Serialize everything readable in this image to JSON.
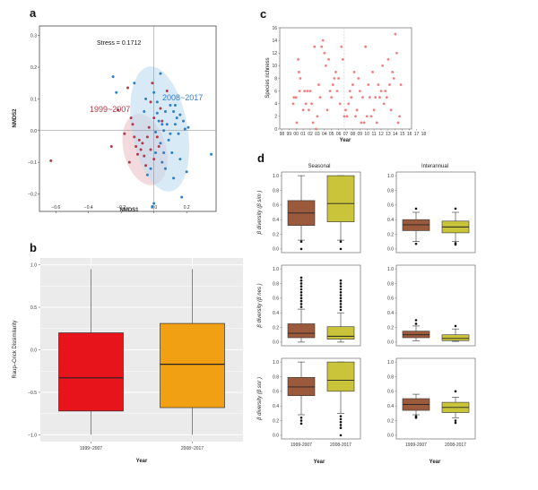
{
  "panels": {
    "a": "a",
    "b": "b",
    "c": "c",
    "d": "d"
  },
  "chart_data": [
    {
      "panel": "a",
      "type": "scatter",
      "xlabel": "NMDS1",
      "ylabel": "NMDS2",
      "xlim": [
        -0.7,
        0.38
      ],
      "ylim": [
        -0.255,
        0.33
      ],
      "xticks": [
        -0.6,
        -0.4,
        -0.2,
        0.0,
        0.2
      ],
      "xtick_labels": [
        "−0.6",
        "−0.4",
        "−0.2",
        "0.0",
        "0.2"
      ],
      "yticks": [
        -0.2,
        -0.1,
        0.0,
        0.1,
        0.2,
        0.3
      ],
      "ytick_labels": [
        "−0.2",
        "−0.1",
        "0.0",
        "0.1",
        "0.2",
        "0.3"
      ],
      "annotation": "Stress = 0.1712",
      "ellipses": [
        {
          "cx": -0.055,
          "cy": -0.06,
          "rx": 0.13,
          "ry": 0.115,
          "angle": -15,
          "color": "#e9c2c6"
        },
        {
          "cx": 0.035,
          "cy": 0.005,
          "rx": 0.17,
          "ry": 0.2,
          "angle": -10,
          "color": "#bfdcf1"
        }
      ],
      "series": [
        {
          "name": "1999~2007",
          "color": "#b03a48",
          "points": [
            [
              -0.63,
              -0.095
            ],
            [
              -0.26,
              -0.05
            ],
            [
              -0.22,
              0.065
            ],
            [
              -0.16,
              0.135
            ],
            [
              -0.14,
              0.04
            ],
            [
              -0.13,
              0.02
            ],
            [
              -0.12,
              -0.02
            ],
            [
              -0.11,
              -0.05
            ],
            [
              -0.1,
              -0.075
            ],
            [
              -0.09,
              -0.03
            ],
            [
              -0.08,
              -0.06
            ],
            [
              -0.07,
              -0.04
            ],
            [
              -0.06,
              -0.08
            ],
            [
              -0.05,
              -0.11
            ],
            [
              -0.04,
              -0.02
            ],
            [
              -0.03,
              0.01
            ],
            [
              -0.02,
              -0.06
            ],
            [
              -0.01,
              0.15
            ],
            [
              0.0,
              0.04
            ],
            [
              0.0,
              -0.09
            ],
            [
              0.02,
              -0.02
            ],
            [
              0.03,
              -0.05
            ],
            [
              0.05,
              0.03
            ],
            [
              0.08,
              0.125
            ],
            [
              -0.15,
              -0.1
            ],
            [
              -0.18,
              -0.01
            ],
            [
              0.04,
              0.07
            ],
            [
              -0.02,
              0.09
            ]
          ]
        },
        {
          "name": "2008~2017",
          "color": "#2f7fc4",
          "points": [
            [
              -0.25,
              0.17
            ],
            [
              -0.23,
              0.12
            ],
            [
              -0.12,
              0.15
            ],
            [
              -0.06,
              0.06
            ],
            [
              -0.04,
              -0.14
            ],
            [
              -0.02,
              -0.12
            ],
            [
              -0.01,
              -0.24
            ],
            [
              0.0,
              -0.23
            ],
            [
              0.01,
              -0.005
            ],
            [
              0.01,
              -0.07
            ],
            [
              0.02,
              0.09
            ],
            [
              0.02,
              0.055
            ],
            [
              0.03,
              0.03
            ],
            [
              0.04,
              -0.04
            ],
            [
              0.04,
              0.18
            ],
            [
              0.05,
              0.02
            ],
            [
              0.05,
              -0.1
            ],
            [
              0.06,
              0.0
            ],
            [
              0.07,
              -0.12
            ],
            [
              0.07,
              0.06
            ],
            [
              0.08,
              0.02
            ],
            [
              0.09,
              -0.03
            ],
            [
              0.1,
              -0.01
            ],
            [
              0.1,
              0.08
            ],
            [
              0.11,
              -0.07
            ],
            [
              0.12,
              0.06
            ],
            [
              0.12,
              -0.15
            ],
            [
              0.13,
              0.02
            ],
            [
              0.14,
              0.04
            ],
            [
              0.15,
              -0.01
            ],
            [
              0.16,
              -0.09
            ],
            [
              0.16,
              0.05
            ],
            [
              0.17,
              -0.21
            ],
            [
              0.18,
              0.03
            ],
            [
              0.19,
              0.005
            ],
            [
              0.2,
              -0.13
            ],
            [
              0.21,
              0.01
            ],
            [
              0.35,
              -0.075
            ],
            [
              -0.05,
              0.1
            ],
            [
              0.0,
              0.12
            ],
            [
              0.06,
              -0.07
            ],
            [
              0.13,
              0.08
            ]
          ]
        }
      ]
    },
    {
      "panel": "b",
      "type": "boxplot",
      "categories": [
        "1999~2007",
        "2008~2017"
      ],
      "xlabel": "Year",
      "ylabel": "Raup–Crick Dissimilarity",
      "ylim": [
        -1.08,
        1.08
      ],
      "yticks": [
        -1.0,
        -0.5,
        0.0,
        0.5,
        1.0
      ],
      "ytick_labels": [
        "−1.0",
        "−0.5",
        "0.0",
        "0.5",
        "1.0"
      ],
      "boxes": [
        {
          "min": -1.0,
          "q1": -0.72,
          "median": -0.33,
          "q3": 0.2,
          "max": 0.95,
          "color": "#e8141b"
        },
        {
          "min": -1.0,
          "q1": -0.68,
          "median": -0.17,
          "q3": 0.31,
          "max": 0.95,
          "color": "#f2a013"
        }
      ]
    },
    {
      "panel": "c",
      "type": "scatter",
      "xlabel": "Year",
      "ylabel": "Species richness",
      "xlim": [
        -0.3,
        18.3
      ],
      "ylim": [
        0,
        16
      ],
      "xtick_labels": [
        "98",
        "99",
        "00",
        "01",
        "02",
        "03",
        "04",
        "05",
        "06",
        "07",
        "08",
        "09",
        "10",
        "11",
        "12",
        "13",
        "14",
        "15",
        "16",
        "17",
        "18"
      ],
      "yticks": [
        0,
        2,
        4,
        6,
        8,
        10,
        12,
        14,
        16
      ],
      "ytick_labels": [
        "0",
        "2",
        "4",
        "6",
        "8",
        "10",
        "12",
        "14",
        "16"
      ],
      "vline_x": 8.8,
      "color": "#f08080",
      "points": [
        [
          1.6,
          4
        ],
        [
          1.7,
          5
        ],
        [
          2.0,
          5
        ],
        [
          2.1,
          1
        ],
        [
          2.3,
          11
        ],
        [
          2.4,
          9
        ],
        [
          2.5,
          6
        ],
        [
          2.6,
          8
        ],
        [
          3.0,
          3
        ],
        [
          3.2,
          6
        ],
        [
          3.4,
          4
        ],
        [
          3.6,
          6
        ],
        [
          3.8,
          3
        ],
        [
          4.0,
          6
        ],
        [
          4.2,
          4
        ],
        [
          4.4,
          1
        ],
        [
          4.6,
          13
        ],
        [
          4.8,
          0
        ],
        [
          5.0,
          2
        ],
        [
          5.2,
          7
        ],
        [
          5.4,
          5
        ],
        [
          5.6,
          13
        ],
        [
          5.8,
          14
        ],
        [
          6.0,
          12
        ],
        [
          6.2,
          10
        ],
        [
          6.4,
          3
        ],
        [
          6.6,
          11
        ],
        [
          6.8,
          6
        ],
        [
          7.0,
          5
        ],
        [
          7.2,
          7
        ],
        [
          7.4,
          8
        ],
        [
          7.6,
          9
        ],
        [
          7.8,
          6
        ],
        [
          8.0,
          8
        ],
        [
          8.2,
          4
        ],
        [
          8.4,
          13
        ],
        [
          8.6,
          11
        ],
        [
          8.8,
          2
        ],
        [
          9.0,
          3
        ],
        [
          9.2,
          2
        ],
        [
          9.4,
          4
        ],
        [
          9.6,
          6
        ],
        [
          9.8,
          5
        ],
        [
          10.0,
          7
        ],
        [
          10.2,
          9
        ],
        [
          10.4,
          2
        ],
        [
          10.6,
          3
        ],
        [
          10.8,
          8
        ],
        [
          11.0,
          6
        ],
        [
          11.2,
          1
        ],
        [
          11.4,
          5
        ],
        [
          11.6,
          1
        ],
        [
          11.8,
          13
        ],
        [
          12.0,
          2
        ],
        [
          12.2,
          7
        ],
        [
          12.4,
          5
        ],
        [
          12.6,
          2
        ],
        [
          12.8,
          9
        ],
        [
          13.0,
          3
        ],
        [
          13.2,
          5
        ],
        [
          13.4,
          1
        ],
        [
          13.6,
          7
        ],
        [
          13.8,
          5
        ],
        [
          14.0,
          6
        ],
        [
          14.2,
          10
        ],
        [
          14.4,
          4
        ],
        [
          14.6,
          6
        ],
        [
          14.8,
          5
        ],
        [
          15.0,
          11
        ],
        [
          15.2,
          7
        ],
        [
          15.4,
          3
        ],
        [
          15.6,
          9
        ],
        [
          15.8,
          8
        ],
        [
          16.0,
          15
        ],
        [
          16.2,
          12
        ],
        [
          16.4,
          1
        ],
        [
          16.6,
          2
        ],
        [
          16.8,
          7
        ]
      ]
    },
    {
      "panel": "d",
      "type": "boxplot-grid",
      "col_titles": [
        "Seasonal",
        "Interannual"
      ],
      "row_ylabels": [
        "β diversity (β sim )",
        "β diversity (β nes )",
        "β diversity (β sor )"
      ],
      "categories": [
        "1999-2007",
        "2008-2017"
      ],
      "xlabel": "Year",
      "ylim": [
        -0.05,
        1.05
      ],
      "yticks": [
        0.0,
        0.2,
        0.4,
        0.6,
        0.8,
        1.0
      ],
      "ytick_labels": [
        "0.0",
        "0.2",
        "0.4",
        "0.6",
        "0.8",
        "1.0"
      ],
      "colors": [
        "#9b5a3c",
        "#c9c43a"
      ],
      "cells": [
        {
          "row": 0,
          "col": 0,
          "boxes": [
            {
              "min": 0.12,
              "q1": 0.32,
              "median": 0.49,
              "q3": 0.66,
              "max": 1.0,
              "outliers": [
                0.0,
                0.1
              ]
            },
            {
              "min": 0.12,
              "q1": 0.37,
              "median": 0.62,
              "q3": 1.0,
              "max": 1.0,
              "outliers": [
                0.0,
                0.1
              ]
            }
          ]
        },
        {
          "row": 0,
          "col": 1,
          "boxes": [
            {
              "min": 0.1,
              "q1": 0.25,
              "median": 0.33,
              "q3": 0.4,
              "max": 0.5,
              "outliers": [
                0.07,
                0.55
              ]
            },
            {
              "min": 0.1,
              "q1": 0.22,
              "median": 0.3,
              "q3": 0.38,
              "max": 0.5,
              "outliers": [
                0.06,
                0.08,
                0.55
              ]
            }
          ]
        },
        {
          "row": 1,
          "col": 0,
          "boxes": [
            {
              "min": 0.0,
              "q1": 0.06,
              "median": 0.12,
              "q3": 0.25,
              "max": 0.45,
              "outliers": [
                0.48,
                0.52,
                0.56,
                0.6,
                0.64,
                0.68,
                0.72,
                0.76,
                0.8,
                0.84,
                0.88
              ]
            },
            {
              "min": 0.0,
              "q1": 0.04,
              "median": 0.08,
              "q3": 0.21,
              "max": 0.4,
              "outliers": [
                0.44,
                0.48,
                0.52,
                0.56,
                0.6,
                0.64,
                0.68,
                0.72,
                0.76,
                0.8,
                0.84
              ]
            }
          ]
        },
        {
          "row": 1,
          "col": 1,
          "boxes": [
            {
              "min": 0.02,
              "q1": 0.06,
              "median": 0.1,
              "q3": 0.15,
              "max": 0.22,
              "outliers": [
                0.25,
                0.3
              ]
            },
            {
              "min": 0.01,
              "q1": 0.02,
              "median": 0.05,
              "q3": 0.1,
              "max": 0.18,
              "outliers": [
                0.22
              ]
            }
          ]
        },
        {
          "row": 2,
          "col": 0,
          "boxes": [
            {
              "min": 0.28,
              "q1": 0.54,
              "median": 0.66,
              "q3": 0.79,
              "max": 1.0,
              "outliers": [
                0.16,
                0.2,
                0.24
              ]
            },
            {
              "min": 0.3,
              "q1": 0.6,
              "median": 0.75,
              "q3": 1.0,
              "max": 1.0,
              "outliers": [
                0.0,
                0.1,
                0.14,
                0.18,
                0.22,
                0.26
              ]
            }
          ]
        },
        {
          "row": 2,
          "col": 1,
          "boxes": [
            {
              "min": 0.28,
              "q1": 0.34,
              "median": 0.42,
              "q3": 0.5,
              "max": 0.56,
              "outliers": [
                0.24,
                0.26
              ]
            },
            {
              "min": 0.24,
              "q1": 0.31,
              "median": 0.38,
              "q3": 0.45,
              "max": 0.52,
              "outliers": [
                0.17,
                0.2,
                0.6
              ]
            }
          ]
        }
      ]
    }
  ]
}
